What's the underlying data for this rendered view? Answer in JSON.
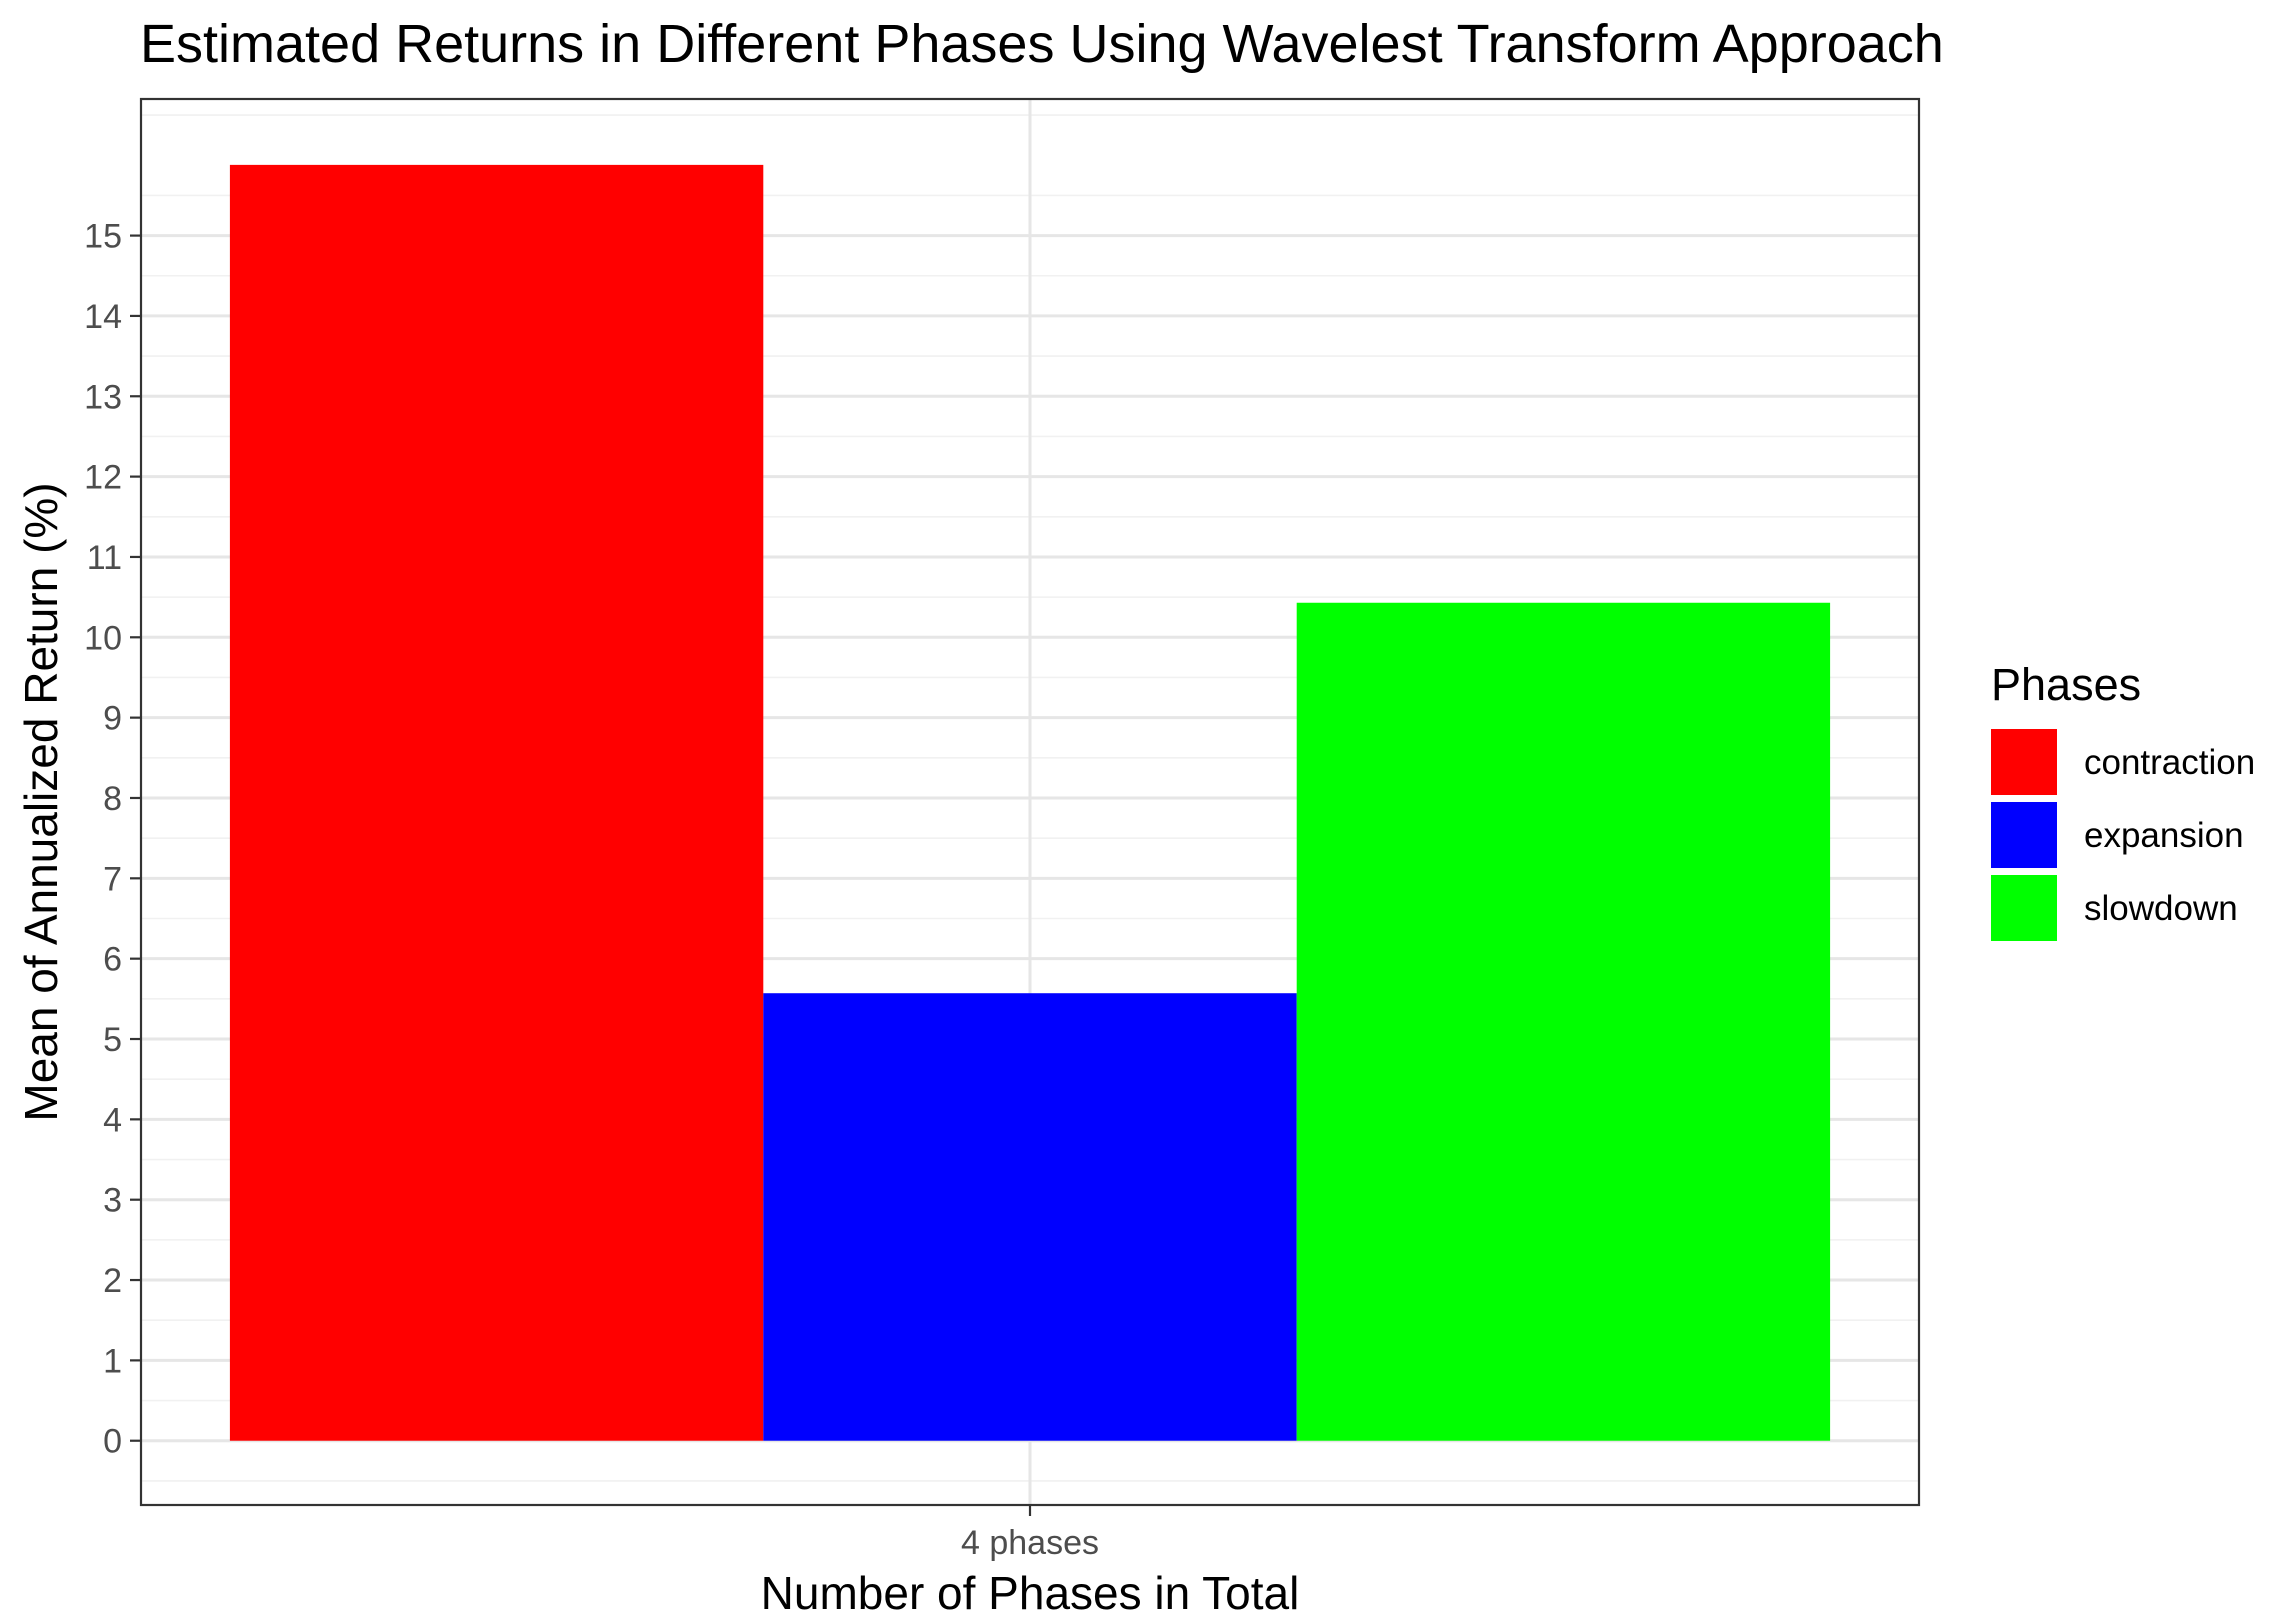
{
  "chart_data": {
    "type": "bar",
    "title": "Estimated Returns in Different Phases Using Wavelest Transform Approach",
    "xlabel": "Number of Phases in Total",
    "ylabel": "Mean of Annualized Return (%)",
    "categories": [
      "4 phases"
    ],
    "series": [
      {
        "name": "contraction",
        "values": [
          15.88
        ],
        "color": "#FF0000"
      },
      {
        "name": "expansion",
        "values": [
          5.57
        ],
        "color": "#0000FF"
      },
      {
        "name": "slowdown",
        "values": [
          10.43
        ],
        "color": "#00FF00"
      }
    ],
    "ylim": [
      -0.8,
      16.7
    ],
    "yticks": [
      "0",
      "1",
      "2",
      "3",
      "4",
      "5",
      "6",
      "7",
      "8",
      "9",
      "10",
      "11",
      "12",
      "13",
      "14",
      "15"
    ],
    "legend": {
      "title": "Phases",
      "position": "right"
    },
    "grid": true
  }
}
